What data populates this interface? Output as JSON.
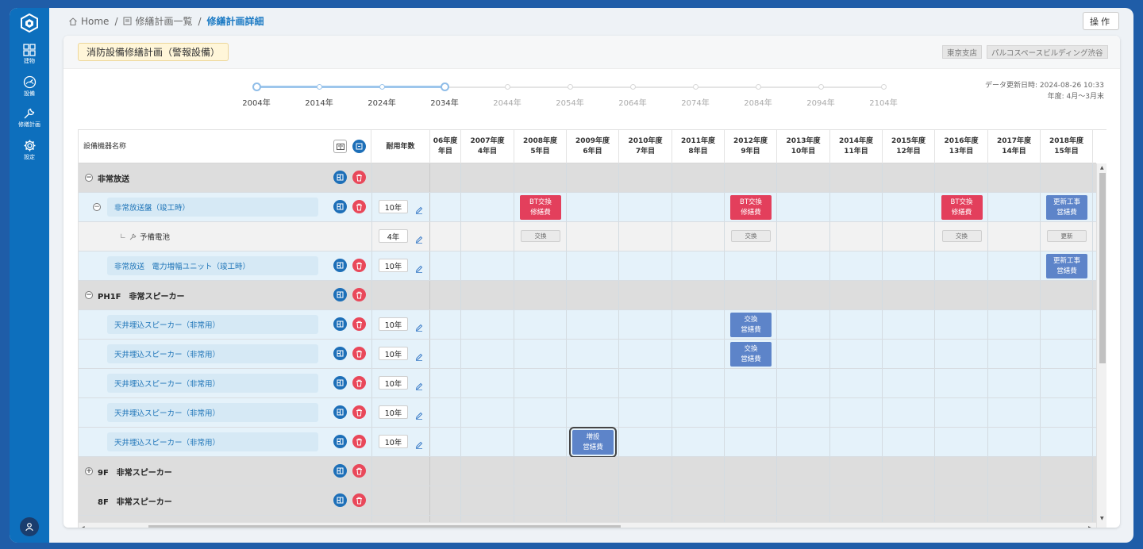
{
  "sidebar": {
    "items": [
      {
        "label": "建物",
        "icon": "grid-icon"
      },
      {
        "label": "設備",
        "icon": "gauge-icon"
      },
      {
        "label": "修繕計画",
        "icon": "wrench-icon"
      },
      {
        "label": "設定",
        "icon": "gear-icon"
      }
    ]
  },
  "breadcrumb": {
    "home": "Home",
    "list": "修繕計画一覧",
    "current": "修繕計画詳細",
    "sep": "/"
  },
  "ops_label": "操作",
  "plan_title": "消防設備修繕計画（警報設備）",
  "tags": [
    "東京支店",
    "パルコスペースビルディング渋谷"
  ],
  "updated": {
    "line1": "データ更新日時: 2024-08-26 10:33",
    "line2": "年度: 4月〜3月末"
  },
  "timeline": {
    "years": [
      "2004年",
      "2014年",
      "2024年",
      "2034年",
      "2044年",
      "2054年",
      "2064年",
      "2074年",
      "2084年",
      "2094年",
      "2104年"
    ],
    "active_until_index": 3
  },
  "table": {
    "col_name": "設備機器名称",
    "col_years": "耐用年数",
    "year_headers": [
      {
        "year": "06年度",
        "idx": "年目"
      },
      {
        "year": "2007年度",
        "idx": "4年目"
      },
      {
        "year": "2008年度",
        "idx": "5年目"
      },
      {
        "year": "2009年度",
        "idx": "6年目"
      },
      {
        "year": "2010年度",
        "idx": "7年目"
      },
      {
        "year": "2011年度",
        "idx": "8年目"
      },
      {
        "year": "2012年度",
        "idx": "9年目"
      },
      {
        "year": "2013年度",
        "idx": "10年目"
      },
      {
        "year": "2014年度",
        "idx": "11年目"
      },
      {
        "year": "2015年度",
        "idx": "12年目"
      },
      {
        "year": "2016年度",
        "idx": "13年目"
      },
      {
        "year": "2017年度",
        "idx": "14年目"
      },
      {
        "year": "2018年度",
        "idx": "15年目"
      }
    ],
    "rows": [
      {
        "type": "group",
        "toggle": "−",
        "label": "非常放送",
        "events": []
      },
      {
        "type": "item",
        "toggle": "−",
        "label": "非常放送盤（竣工時）",
        "years": "10年",
        "events": [
          {
            "col": 2,
            "color": "red",
            "l1": "BT交換",
            "l2": "修繕費"
          },
          {
            "col": 6,
            "color": "red",
            "l1": "BT交換",
            "l2": "修繕費"
          },
          {
            "col": 10,
            "color": "red",
            "l1": "BT交換",
            "l2": "修繕費"
          },
          {
            "col": 12,
            "color": "blue",
            "l1": "更新工事",
            "l2": "営繕費"
          }
        ]
      },
      {
        "type": "sub",
        "label": "予備電池",
        "prefix": "∟",
        "years": "4年",
        "smalls": [
          {
            "col": 2,
            "label": "交換"
          },
          {
            "col": 6,
            "label": "交換"
          },
          {
            "col": 10,
            "label": "交換"
          },
          {
            "col": 12,
            "label": "更新"
          }
        ]
      },
      {
        "type": "item",
        "label": "非常放送　電力増幅ユニット（竣工時）",
        "years": "10年",
        "events": [
          {
            "col": 12,
            "color": "blue",
            "l1": "更新工事",
            "l2": "営繕費"
          }
        ]
      },
      {
        "type": "group",
        "toggle": "−",
        "label": "PH1F　非常スピーカー",
        "events": []
      },
      {
        "type": "item",
        "label": "天井埋込スピーカー（非常用）",
        "years": "10年",
        "events": [
          {
            "col": 6,
            "color": "blue",
            "l1": "交換",
            "l2": "営繕費"
          }
        ]
      },
      {
        "type": "item",
        "label": "天井埋込スピーカー（非常用）",
        "years": "10年",
        "events": [
          {
            "col": 6,
            "color": "blue",
            "l1": "交換",
            "l2": "営繕費"
          }
        ]
      },
      {
        "type": "item",
        "label": "天井埋込スピーカー（非常用）",
        "years": "10年",
        "events": []
      },
      {
        "type": "item",
        "label": "天井埋込スピーカー（非常用）",
        "years": "10年",
        "events": []
      },
      {
        "type": "item",
        "label": "天井埋込スピーカー（非常用）",
        "years": "10年",
        "events": [
          {
            "col": 3,
            "color": "blue",
            "l1": "増設",
            "l2": "営繕費",
            "selected": true
          }
        ]
      },
      {
        "type": "group",
        "toggle": "+",
        "label": "9F　非常スピーカー",
        "events": []
      },
      {
        "type": "group",
        "label": "8F　非常スピーカー",
        "events": []
      },
      {
        "type": "group",
        "label": "",
        "events": []
      }
    ]
  }
}
